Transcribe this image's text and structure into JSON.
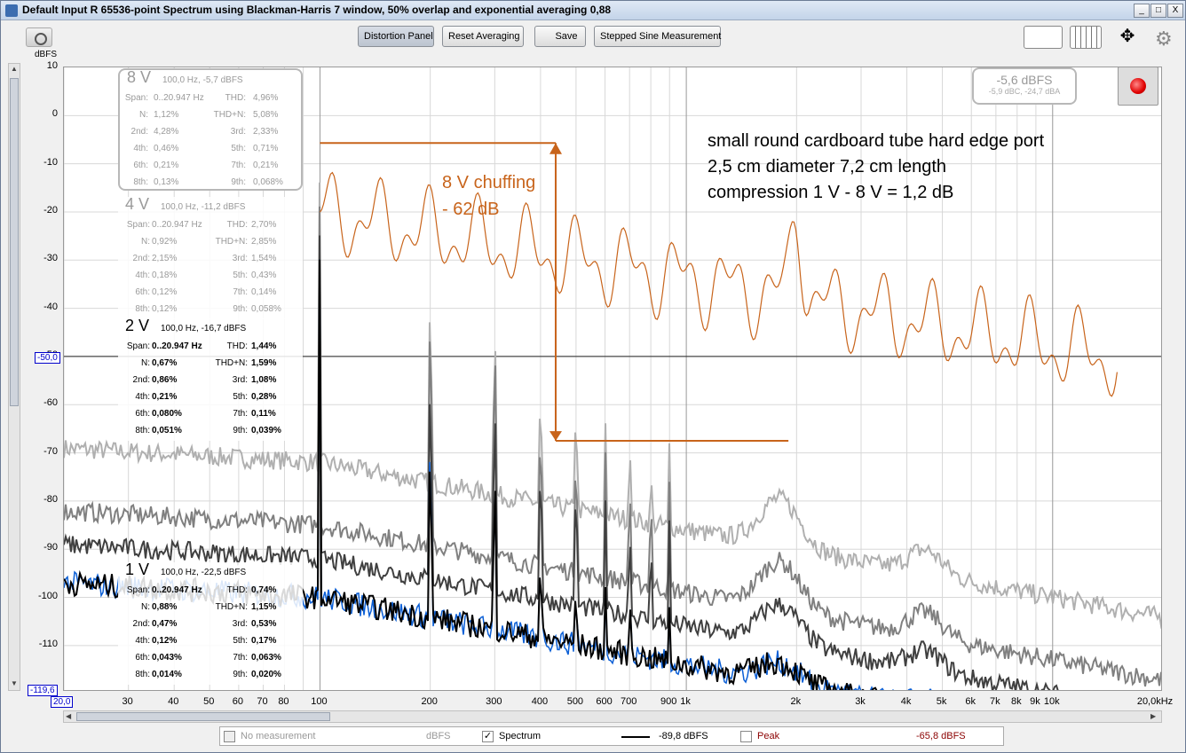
{
  "window": {
    "title": "Default Input R 65536-point Spectrum using Blackman-Harris 7 window, 50% overlap and exponential averaging 0,88",
    "minimize": "_",
    "maximize": "□",
    "close": "X"
  },
  "toolbar": {
    "distortion_panel": "Distortion Panel",
    "reset_averaging": "Reset Averaging",
    "save": "Save",
    "stepped_sine": "Stepped Sine Measurement"
  },
  "axes": {
    "y_unit": "dBFS",
    "y_ticks": [
      "10",
      "0",
      "-10",
      "-20",
      "-30",
      "-40",
      "-50",
      "-60",
      "-70",
      "-80",
      "-90",
      "-100",
      "-110"
    ],
    "y_bottom": "-119,6",
    "y_ref": "-50,0",
    "x_left": "20,0",
    "x_ticks": [
      "30",
      "40",
      "50",
      "60",
      "70",
      "80",
      "100",
      "200",
      "300",
      "400",
      "500",
      "600",
      "700",
      "900",
      "1k",
      "2k",
      "3k",
      "4k",
      "5k",
      "6k",
      "7k",
      "8k",
      "9k",
      "10k"
    ],
    "x_right": "20,0kHz"
  },
  "level_meter": {
    "main": "-5,6 dBFS",
    "sub": "-5,9 dBC, -24,7 dBA"
  },
  "panels": [
    {
      "voltage": "8 V",
      "head": "100,0 Hz, -5,7 dBFS",
      "span_label": "Span:",
      "span": "0..20.947 Hz",
      "thd_label": "THD:",
      "thd": "4,96%",
      "n_label": "N:",
      "n": "1,12%",
      "thdn_label": "THD+N:",
      "thdn": "5,08%",
      "h2_label": "2nd:",
      "h2": "4,28%",
      "h3_label": "3rd:",
      "h3": "2,33%",
      "h4_label": "4th:",
      "h4": "0,46%",
      "h5_label": "5th:",
      "h5": "0,71%",
      "h6_label": "6th:",
      "h6": "0,21%",
      "h7_label": "7th:",
      "h7": "0,21%",
      "h8_label": "8th:",
      "h8": "0,13%",
      "h9_label": "9th:",
      "h9": "0,068%"
    },
    {
      "voltage": "4 V",
      "head": "100,0 Hz, -11,2 dBFS",
      "span_label": "Span:",
      "span": "0..20.947 Hz",
      "thd_label": "THD:",
      "thd": "2,70%",
      "n_label": "N:",
      "n": "0,92%",
      "thdn_label": "THD+N:",
      "thdn": "2,85%",
      "h2_label": "2nd:",
      "h2": "2,15%",
      "h3_label": "3rd:",
      "h3": "1,54%",
      "h4_label": "4th:",
      "h4": "0,18%",
      "h5_label": "5th:",
      "h5": "0,43%",
      "h6_label": "6th:",
      "h6": "0,12%",
      "h7_label": "7th:",
      "h7": "0,14%",
      "h8_label": "8th:",
      "h8": "0,12%",
      "h9_label": "9th:",
      "h9": "0,058%"
    },
    {
      "voltage": "2 V",
      "head": "100,0 Hz, -16,7 dBFS",
      "span_label": "Span:",
      "span": "0..20.947 Hz",
      "thd_label": "THD:",
      "thd": "1,44%",
      "n_label": "N:",
      "n": "0,67%",
      "thdn_label": "THD+N:",
      "thdn": "1,59%",
      "h2_label": "2nd:",
      "h2": "0,86%",
      "h3_label": "3rd:",
      "h3": "1,08%",
      "h4_label": "4th:",
      "h4": "0,21%",
      "h5_label": "5th:",
      "h5": "0,28%",
      "h6_label": "6th:",
      "h6": "0,080%",
      "h7_label": "7th:",
      "h7": "0,11%",
      "h8_label": "8th:",
      "h8": "0,051%",
      "h9_label": "9th:",
      "h9": "0,039%"
    },
    {
      "voltage": "1 V",
      "head": "100,0 Hz, -22,5 dBFS",
      "span_label": "Span:",
      "span": "0..20.947 Hz",
      "thd_label": "THD:",
      "thd": "0,74%",
      "n_label": "N:",
      "n": "0,88%",
      "thdn_label": "THD+N:",
      "thdn": "1,15%",
      "h2_label": "2nd:",
      "h2": "0,47%",
      "h3_label": "3rd:",
      "h3": "0,53%",
      "h4_label": "4th:",
      "h4": "0,12%",
      "h5_label": "5th:",
      "h5": "0,17%",
      "h6_label": "6th:",
      "h6": "0,043%",
      "h7_label": "7th:",
      "h7": "0,063%",
      "h8_label": "8th:",
      "h8": "0,014%",
      "h9_label": "9th:",
      "h9": "0,020%"
    }
  ],
  "annotation": {
    "line1": "small round cardboard tube hard edge port",
    "line2": "2,5 cm diameter 7,2 cm length",
    "line3": "compression 1 V - 8 V = 1,2 dB",
    "chuff1": "8 V chuffing",
    "chuff2": "- 62 dB"
  },
  "legend": {
    "no_measurement": "No measurement",
    "unit1": "dBFS",
    "spectrum": "Spectrum",
    "spectrum_value": "-89,8 dBFS",
    "peak": "Peak",
    "peak_value": "-65,8 dBFS",
    "spectrum_checked": "✓"
  },
  "colors": {
    "chuff": "#c8641b",
    "trace_1v": "#000000",
    "trace_blue": "#0b5fd6",
    "trace_2v": "#404040",
    "trace_4v": "#808080",
    "trace_8v": "#b0b0b0"
  }
}
